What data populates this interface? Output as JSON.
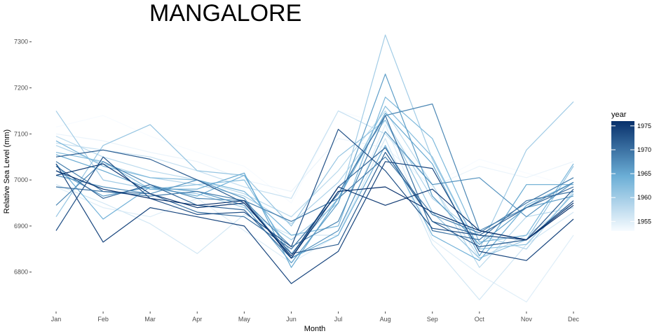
{
  "chart_data": {
    "type": "line",
    "title": "MANGALORE",
    "xlabel": "Month",
    "ylabel": "Relative Sea Level (mm)",
    "categories": [
      "Jan",
      "Feb",
      "Mar",
      "Apr",
      "May",
      "Jun",
      "Jul",
      "Aug",
      "Sep",
      "Oct",
      "Nov",
      "Dec"
    ],
    "y_ticks": [
      6800,
      6900,
      7000,
      7100,
      7200,
      7300
    ],
    "ylim": [
      6725,
      7330
    ],
    "grid": false,
    "legend": {
      "title": "year",
      "type": "colorbar",
      "placement": "right",
      "ticks": [
        1955,
        1960,
        1965,
        1970,
        1975
      ],
      "range": [
        1953,
        1976
      ],
      "color_low": "#f7fbff",
      "color_high": "#08306b"
    },
    "series": [
      {
        "year": 1953,
        "values": [
          7115,
          7140,
          7095,
          7060,
          7030,
          6950,
          7150,
          7120,
          6990,
          7045,
          7015,
          6985
        ]
      },
      {
        "year": 1954,
        "values": [
          7100,
          7085,
          7060,
          7040,
          7000,
          6975,
          7090,
          7070,
          6985,
          7030,
          7005,
          7040
        ]
      },
      {
        "year": 1955,
        "values": [
          6985,
          6940,
          6920,
          6960,
          6890,
          6820,
          6880,
          7120,
          6870,
          6795,
          6735,
          6880
        ]
      },
      {
        "year": 1956,
        "values": [
          6990,
          6950,
          6905,
          6840,
          6925,
          6880,
          6880,
          7090,
          6860,
          6740,
          6860,
          6930
        ]
      },
      {
        "year": 1957,
        "values": [
          7080,
          7065,
          7050,
          7020,
          6985,
          6960,
          7150,
          7100,
          6990,
          6830,
          6880,
          6950
        ]
      },
      {
        "year": 1958,
        "values": [
          7095,
          7050,
          7020,
          7000,
          6970,
          6920,
          7020,
          7150,
          6990,
          6810,
          6920,
          6940
        ]
      },
      {
        "year": 1959,
        "values": [
          7075,
          7035,
          7005,
          6990,
          6965,
          6905,
          6995,
          7130,
          6960,
          6880,
          6850,
          6975
        ]
      },
      {
        "year": 1960,
        "values": [
          7150,
          7000,
          6980,
          6970,
          6940,
          6870,
          6950,
          7315,
          7045,
          6850,
          7065,
          7170
        ]
      },
      {
        "year": 1961,
        "values": [
          6920,
          7075,
          7120,
          7020,
          7010,
          6900,
          7050,
          7130,
          6930,
          6830,
          6870,
          7030
        ]
      },
      {
        "year": 1962,
        "values": [
          7060,
          7040,
          6980,
          6990,
          7000,
          6840,
          6960,
          7160,
          7050,
          6850,
          6860,
          6970
        ]
      },
      {
        "year": 1963,
        "values": [
          7085,
          7030,
          7005,
          7000,
          6975,
          6880,
          6900,
          7180,
          7090,
          6865,
          6880,
          7035
        ]
      },
      {
        "year": 1964,
        "values": [
          7035,
          6915,
          6985,
          6965,
          7010,
          6830,
          6880,
          7075,
          6880,
          6825,
          6945,
          6995
        ]
      },
      {
        "year": 1965,
        "values": [
          7055,
          7020,
          6980,
          6980,
          7015,
          6810,
          6960,
          7145,
          7035,
          6835,
          6990,
          6990
        ]
      },
      {
        "year": 1966,
        "values": [
          7020,
          6965,
          6985,
          6975,
          6945,
          6820,
          6950,
          7230,
          6965,
          6860,
          6940,
          6965
        ]
      },
      {
        "year": 1967,
        "values": [
          7010,
          6985,
          6970,
          7000,
          6960,
          6830,
          6890,
          7105,
          6990,
          7005,
          6920,
          6995
        ]
      },
      {
        "year": 1968,
        "values": [
          6945,
          7040,
          6990,
          6960,
          6955,
          6855,
          6910,
          7140,
          7165,
          6890,
          6940,
          6995
        ]
      },
      {
        "year": 1969,
        "values": [
          7040,
          6975,
          6965,
          6975,
          6955,
          6910,
          6960,
          7050,
          6925,
          6885,
          6950,
          7005
        ]
      },
      {
        "year": 1970,
        "values": [
          6985,
          6975,
          6970,
          6930,
          6920,
          6850,
          6970,
          7140,
          6890,
          6870,
          6955,
          6975
        ]
      },
      {
        "year": 1971,
        "values": [
          7030,
          6960,
          6990,
          6945,
          6935,
          6830,
          6985,
          7070,
          6910,
          6880,
          6940,
          6985
        ]
      },
      {
        "year": 1972,
        "values": [
          7050,
          7065,
          7045,
          7000,
          6950,
          6840,
          6860,
          7060,
          6910,
          6855,
          6870,
          6980
        ]
      },
      {
        "year": 1973,
        "values": [
          6890,
          7050,
          6960,
          6925,
          6930,
          6855,
          7110,
          7020,
          6895,
          6880,
          6870,
          6955
        ]
      },
      {
        "year": 1974,
        "values": [
          7035,
          6865,
          6940,
          6920,
          6900,
          6775,
          6845,
          7040,
          7025,
          6845,
          6825,
          6915
        ]
      },
      {
        "year": 1975,
        "values": [
          7010,
          7035,
          6970,
          6940,
          6950,
          6835,
          6985,
          6945,
          6980,
          6890,
          6870,
          6950
        ]
      },
      {
        "year": 1976,
        "values": [
          7020,
          6980,
          6960,
          6945,
          6955,
          6830,
          6975,
          6985,
          6930,
          6890,
          6870,
          6945
        ]
      }
    ]
  }
}
